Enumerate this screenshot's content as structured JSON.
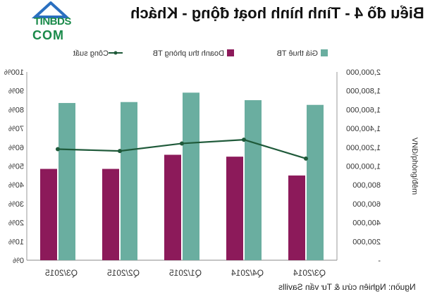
{
  "header": {
    "title": "Biểu đồ 4 - Tình hình hoạt động - Khách",
    "logo_top": "TINBDS",
    "logo_bottom": "COM"
  },
  "footer": {
    "source": "Nguồn: Nghiên cứu & Tư vấn Savills"
  },
  "colors": {
    "rent": "#6aaea0",
    "revenue": "#8c1a5a",
    "occupancy": "#1f5a3a",
    "grid": "#cfcfcf"
  },
  "chart_data": {
    "type": "bar",
    "categories": [
      "Q3/2014",
      "Q4/2014",
      "Q1/2015",
      "Q2/2015",
      "Q3/2015"
    ],
    "series": [
      {
        "name": "Giá thuê TB",
        "type": "bar",
        "axis": "vnd",
        "values": [
          1650000,
          1700000,
          1780000,
          1680000,
          1670000
        ]
      },
      {
        "name": "Doanh thu phòng TB",
        "type": "bar",
        "axis": "vnd",
        "values": [
          900000,
          1100000,
          1120000,
          970000,
          970000
        ]
      },
      {
        "name": "Công suất",
        "type": "line",
        "axis": "percent",
        "values": [
          54,
          64,
          62,
          58,
          59
        ]
      }
    ],
    "y_vnd": {
      "label": "VNĐ/phòng/đêm",
      "range": [
        0,
        2000000
      ],
      "ticks": [
        "-",
        "200,000",
        "400,000",
        "600,000",
        "800,000",
        "1,000,000",
        "1,200,000",
        "1,400,000",
        "1,600,000",
        "1,800,000",
        "2,000,000"
      ]
    },
    "y_percent": {
      "range": [
        0,
        100
      ],
      "ticks": [
        "0%",
        "10%",
        "20%",
        "30%",
        "40%",
        "50%",
        "60%",
        "70%",
        "80%",
        "90%",
        "100%"
      ]
    },
    "legend": [
      "Giá thuê TB",
      "Doanh thu phòng TB",
      "Công suất"
    ],
    "legend_position": "top",
    "grid": false
  }
}
